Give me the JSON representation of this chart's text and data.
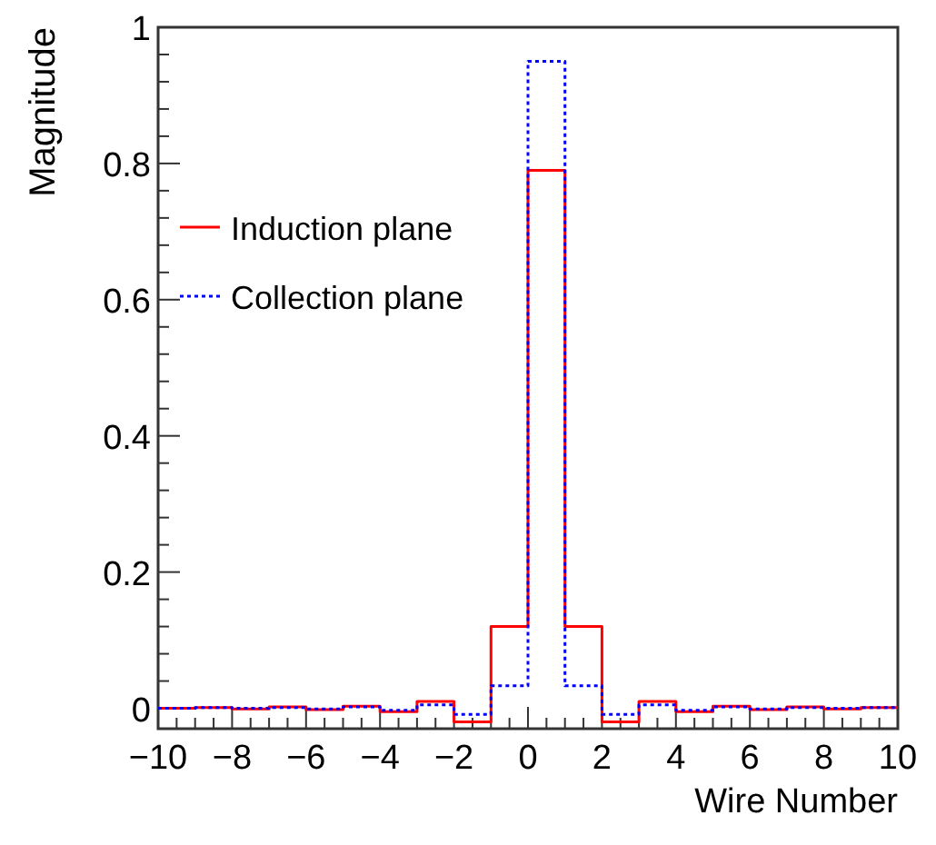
{
  "chart_data": {
    "type": "histogram",
    "xlabel": "Wire Number",
    "ylabel": "Magnitude",
    "bins": [
      -10,
      -9,
      -8,
      -7,
      -6,
      -5,
      -4,
      -3,
      -2,
      -1,
      0,
      1,
      2,
      3,
      4,
      5,
      6,
      7,
      8,
      9,
      10
    ],
    "series": [
      {
        "name": "Induction plane",
        "color": "#ff0000",
        "line_style": "solid",
        "values": [
          0,
          0.001,
          -0.001,
          0.002,
          -0.002,
          0.003,
          -0.005,
          0.01,
          -0.02,
          0.12,
          0.79,
          0.12,
          -0.02,
          0.01,
          -0.005,
          0.003,
          -0.002,
          0.002,
          -0.001,
          0.001
        ]
      },
      {
        "name": "Collection plane",
        "color": "#0000ff",
        "line_style": "dotted",
        "values": [
          0,
          0.001,
          0,
          0.001,
          -0.001,
          0.002,
          -0.003,
          0.005,
          -0.009,
          0.033,
          0.95,
          0.033,
          -0.009,
          0.005,
          -0.003,
          0.002,
          -0.001,
          0.001,
          0,
          0.001
        ]
      }
    ],
    "xlim": [
      -10,
      10
    ],
    "xticks": [
      -10,
      -8,
      -6,
      -4,
      -2,
      0,
      2,
      4,
      6,
      8,
      10
    ],
    "ylim": [
      -0.03,
      1
    ],
    "yticks": [
      0,
      0.2,
      0.4,
      0.6,
      0.8,
      1
    ],
    "grid": false,
    "legend": "top left"
  }
}
